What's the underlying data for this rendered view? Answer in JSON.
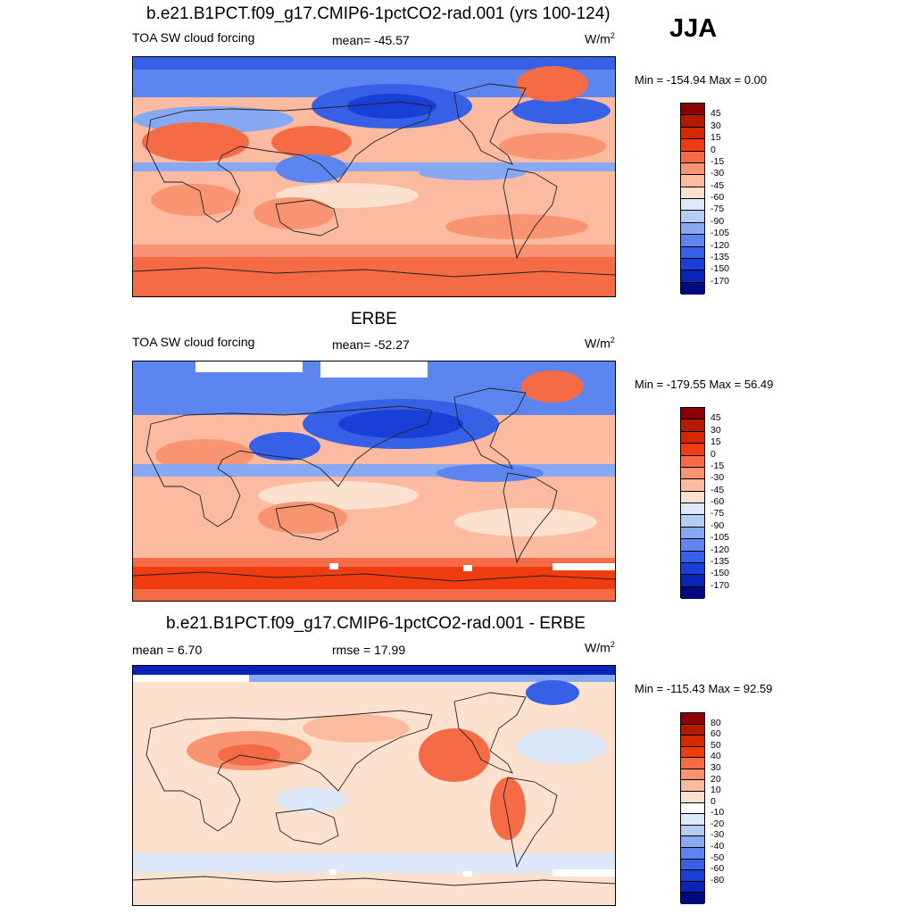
{
  "season": "JJA",
  "panels": [
    {
      "id": "model",
      "title": "b.e21.B1PCT.f09_g17.CMIP6-1pctCO2-rad.001 (yrs 100-124)",
      "left": "TOA SW cloud forcing",
      "center": "mean= -45.57",
      "units_base": "W/m",
      "units_exp": "2",
      "minmax": "Min = -154.94 Max =    0.00",
      "colorbar_labels": [
        "45",
        "30",
        "15",
        "0",
        "-15",
        "-30",
        "-45",
        "-60",
        "-75",
        "-90",
        "-105",
        "-120",
        "-135",
        "-150",
        "-170"
      ]
    },
    {
      "id": "obs",
      "title": "ERBE",
      "left": "TOA SW cloud forcing",
      "center": "mean= -52.27",
      "units_base": "W/m",
      "units_exp": "2",
      "minmax": "Min = -179.55 Max =  56.49",
      "colorbar_labels": [
        "45",
        "30",
        "15",
        "0",
        "-15",
        "-30",
        "-45",
        "-60",
        "-75",
        "-90",
        "-105",
        "-120",
        "-135",
        "-150",
        "-170"
      ]
    },
    {
      "id": "diff",
      "title": "b.e21.B1PCT.f09_g17.CMIP6-1pctCO2-rad.001 - ERBE",
      "left": "mean =   6.70",
      "center": "rmse =  17.99",
      "units_base": "W/m",
      "units_exp": "2",
      "minmax": "Min = -115.43 Max =  92.59",
      "colorbar_labels": [
        "80",
        "60",
        "50",
        "40",
        "30",
        "20",
        "10",
        "0",
        "-10",
        "-20",
        "-30",
        "-40",
        "-50",
        "-60",
        "-80"
      ]
    }
  ],
  "colorbar_colors": [
    "#8b0000",
    "#b31a00",
    "#d62800",
    "#ef3c10",
    "#f46b45",
    "#f99472",
    "#fcbba0",
    "#fde1cf",
    "#dce9fa",
    "#b4ccf7",
    "#87a9f3",
    "#5d85ef",
    "#3660e6",
    "#1a3fd6",
    "#0a24b8",
    "#000a7e"
  ],
  "diff_colorbar_colors": [
    "#8b0000",
    "#b31a00",
    "#d62800",
    "#ef3c10",
    "#f46b45",
    "#f99472",
    "#fcbba0",
    "#fde1cf",
    "#ffffff",
    "#dce9fa",
    "#b4ccf7",
    "#87a9f3",
    "#5d85ef",
    "#3660e6",
    "#1a3fd6",
    "#0a24b8",
    "#000a7e"
  ]
}
